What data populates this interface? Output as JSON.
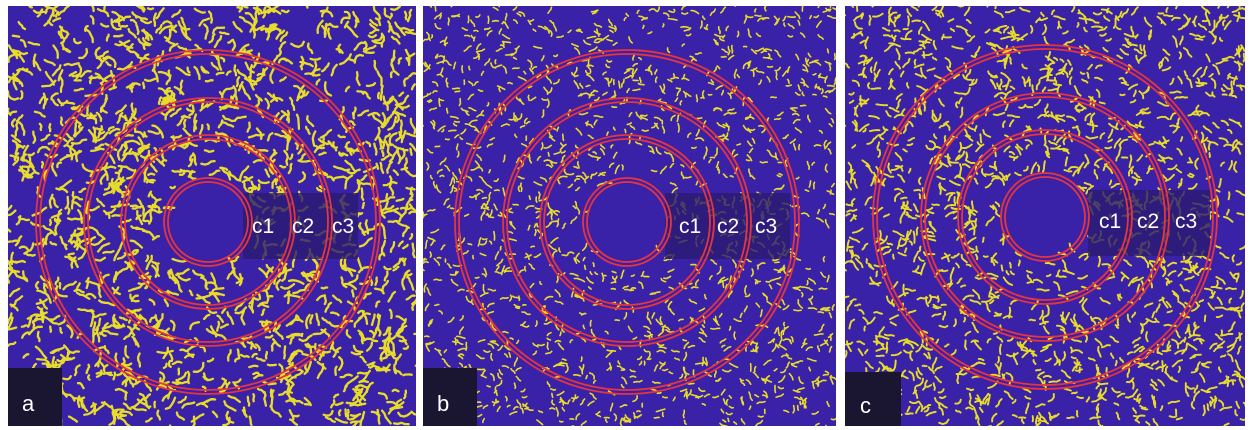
{
  "figure": {
    "background_color": "#3a22a8",
    "vessel_color": "#e8dc2a",
    "ring_color": "#e8343c",
    "panels": [
      {
        "id": "a",
        "label": "a",
        "zone_labels": [
          "c1",
          "c2",
          "c3"
        ],
        "vessel_style": "coarse"
      },
      {
        "id": "b",
        "label": "b",
        "zone_labels": [
          "c1",
          "c2",
          "c3"
        ],
        "vessel_style": "fine"
      },
      {
        "id": "c",
        "label": "c",
        "zone_labels": [
          "c1",
          "c2",
          "c3"
        ],
        "vessel_style": "medium"
      }
    ]
  }
}
